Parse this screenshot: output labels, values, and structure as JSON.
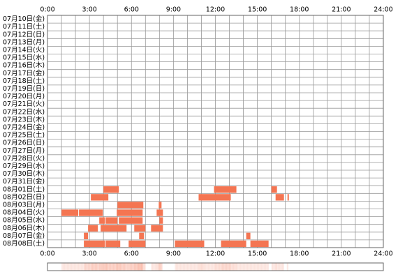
{
  "chart_data": {
    "type": "timeline",
    "categories": [
      "07月10日(金)",
      "07月11日(土)",
      "07月12日(日)",
      "07月13日(月)",
      "07月14日(火)",
      "07月15日(水)",
      "07月16日(木)",
      "07月17日(金)",
      "07月18日(土)",
      "07月19日(日)",
      "07月20日(月)",
      "07月21日(火)",
      "07月22日(水)",
      "07月23日(木)",
      "07月24日(金)",
      "07月25日(土)",
      "07月26日(日)",
      "07月27日(月)",
      "07月28日(火)",
      "07月29日(水)",
      "07月30日(木)",
      "07月31日(金)",
      "08月01日(土)",
      "08月02日(日)",
      "08月03日(月)",
      "08月04日(火)",
      "08月05日(水)",
      "08月06日(木)",
      "08月07日(金)",
      "08月08日(土)"
    ],
    "values": [
      [],
      [],
      [],
      [],
      [],
      [],
      [],
      [],
      [],
      [],
      [],
      [],
      [],
      [],
      [],
      [],
      [],
      [],
      [],
      [],
      [],
      [],
      [
        [
          4.0,
          5.1
        ],
        [
          11.9,
          13.5
        ],
        [
          16.0,
          16.4
        ]
      ],
      [
        [
          3.1,
          4.35
        ],
        [
          10.8,
          13.1
        ],
        [
          16.3,
          16.9
        ],
        [
          17.15,
          17.25
        ]
      ],
      [
        [
          5.0,
          6.85
        ],
        [
          7.95,
          8.15
        ]
      ],
      [
        [
          1.0,
          2.2
        ],
        [
          2.25,
          3.95
        ],
        [
          4.95,
          6.8
        ],
        [
          7.8,
          8.25
        ]
      ],
      [
        [
          3.7,
          4.1
        ],
        [
          4.15,
          5.0
        ],
        [
          5.1,
          6.8
        ],
        [
          8.0,
          8.25
        ]
      ],
      [
        [
          2.9,
          3.6
        ],
        [
          3.8,
          5.65
        ],
        [
          6.2,
          7.0
        ],
        [
          7.4,
          8.25
        ]
      ],
      [
        [
          2.6,
          2.9
        ],
        [
          6.55,
          6.9
        ],
        [
          14.2,
          14.5
        ]
      ],
      [
        [
          2.6,
          4.1
        ],
        [
          4.15,
          5.2
        ],
        [
          5.8,
          7.0
        ],
        [
          9.1,
          11.2
        ],
        [
          12.4,
          14.2
        ],
        [
          14.5,
          15.8
        ]
      ]
    ],
    "color": "#f47552",
    "xlim": [
      0,
      24
    ],
    "xticks": [
      {
        "value": 0,
        "label": "0:00"
      },
      {
        "value": 3,
        "label": "3:00"
      },
      {
        "value": 6,
        "label": "6:00"
      },
      {
        "value": 9,
        "label": "9:00"
      },
      {
        "value": 12,
        "label": "12:00"
      },
      {
        "value": 15,
        "label": "15:00"
      },
      {
        "value": 18,
        "label": "18:00"
      },
      {
        "value": 21,
        "label": "21:00"
      },
      {
        "value": 24,
        "label": "24:00"
      }
    ],
    "xgrid": [
      1,
      2,
      4,
      5,
      7,
      8,
      10,
      11,
      13,
      14,
      16,
      17,
      19,
      20,
      22,
      23
    ],
    "grid": true
  }
}
